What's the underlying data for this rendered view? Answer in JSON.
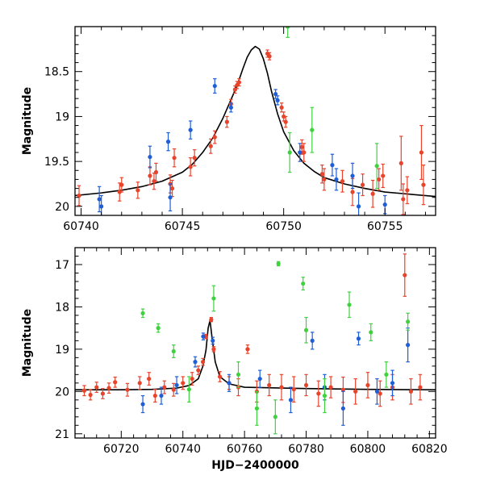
{
  "chart_data": [
    {
      "type": "scatter",
      "panel": "top",
      "title": "",
      "xlabel": "",
      "ylabel": "Magnitude",
      "xlim": [
        60739.7,
        60757.5
      ],
      "ylim": [
        20.1,
        18.0
      ],
      "y_inverted": true,
      "x_ticks": [
        60740,
        60745,
        60750,
        60755
      ],
      "x_tick_labels": [
        "60740",
        "60745",
        "60750",
        "60755"
      ],
      "y_ticks": [
        18.5,
        19,
        19.5,
        20
      ],
      "y_tick_labels": [
        "18.5",
        "19",
        "19.5",
        "20"
      ],
      "grid": false,
      "legend": "none",
      "model": {
        "name": "",
        "color": "#000000",
        "x": [
          60739.7,
          60741,
          60742,
          60743,
          60744,
          60745,
          60745.5,
          60746,
          60746.5,
          60747,
          60747.5,
          60747.8,
          60748,
          60748.2,
          60748.4,
          60748.6,
          60748.8,
          60749,
          60749.2,
          60749.4,
          60749.7,
          60750,
          60750.5,
          60751,
          60751.5,
          60752,
          60753,
          60754,
          60755,
          60756,
          60757.5
        ],
        "y": [
          19.88,
          19.85,
          19.82,
          19.78,
          19.72,
          19.62,
          19.53,
          19.4,
          19.24,
          19.02,
          18.76,
          18.59,
          18.46,
          18.34,
          18.26,
          18.22,
          18.25,
          18.36,
          18.52,
          18.72,
          18.97,
          19.17,
          19.38,
          19.52,
          19.61,
          19.68,
          19.75,
          19.8,
          19.84,
          19.86,
          19.89
        ]
      },
      "series": [
        {
          "name": "",
          "color": "#e8432b",
          "points": [
            {
              "x": 60739.9,
              "y": 19.88,
              "err": 0.11
            },
            {
              "x": 60741.9,
              "y": 19.84,
              "err": 0.1
            },
            {
              "x": 60742.0,
              "y": 19.76,
              "err": 0.08
            },
            {
              "x": 60742.8,
              "y": 19.82,
              "err": 0.09
            },
            {
              "x": 60743.4,
              "y": 19.66,
              "err": 0.1
            },
            {
              "x": 60743.6,
              "y": 19.72,
              "err": 0.09
            },
            {
              "x": 60743.7,
              "y": 19.62,
              "err": 0.1
            },
            {
              "x": 60744.4,
              "y": 19.75,
              "err": 0.1
            },
            {
              "x": 60744.5,
              "y": 19.8,
              "err": 0.09
            },
            {
              "x": 60744.6,
              "y": 19.46,
              "err": 0.1
            },
            {
              "x": 60745.4,
              "y": 19.56,
              "err": 0.1
            },
            {
              "x": 60745.6,
              "y": 19.46,
              "err": 0.09
            },
            {
              "x": 60746.4,
              "y": 19.33,
              "err": 0.08
            },
            {
              "x": 60746.6,
              "y": 19.23,
              "err": 0.07
            },
            {
              "x": 60747.2,
              "y": 19.06,
              "err": 0.06
            },
            {
              "x": 60747.4,
              "y": 18.86,
              "err": 0.05
            },
            {
              "x": 60747.6,
              "y": 18.7,
              "err": 0.04
            },
            {
              "x": 60747.7,
              "y": 18.65,
              "err": 0.04
            },
            {
              "x": 60747.8,
              "y": 18.62,
              "err": 0.04
            },
            {
              "x": 60749.2,
              "y": 18.3,
              "err": 0.04
            },
            {
              "x": 60749.3,
              "y": 18.33,
              "err": 0.04
            },
            {
              "x": 60749.9,
              "y": 18.9,
              "err": 0.05
            },
            {
              "x": 60750.0,
              "y": 19.0,
              "err": 0.05
            },
            {
              "x": 60750.1,
              "y": 19.06,
              "err": 0.06
            },
            {
              "x": 60750.9,
              "y": 19.34,
              "err": 0.08
            },
            {
              "x": 60751.0,
              "y": 19.4,
              "err": 0.1
            },
            {
              "x": 60751.9,
              "y": 19.64,
              "err": 0.1
            },
            {
              "x": 60752.0,
              "y": 19.7,
              "err": 0.12
            },
            {
              "x": 60752.9,
              "y": 19.72,
              "err": 0.12
            },
            {
              "x": 60753.4,
              "y": 19.84,
              "err": 0.15
            },
            {
              "x": 60753.9,
              "y": 19.76,
              "err": 0.12
            },
            {
              "x": 60754.4,
              "y": 19.86,
              "err": 0.15
            },
            {
              "x": 60754.7,
              "y": 19.7,
              "err": 0.12
            },
            {
              "x": 60754.9,
              "y": 19.66,
              "err": 0.13
            },
            {
              "x": 60755.8,
              "y": 19.52,
              "err": 0.3
            },
            {
              "x": 60755.9,
              "y": 19.92,
              "err": 0.17
            },
            {
              "x": 60756.1,
              "y": 19.82,
              "err": 0.15
            },
            {
              "x": 60756.8,
              "y": 19.4,
              "err": 0.3
            },
            {
              "x": 60756.9,
              "y": 19.76,
              "err": 0.22
            }
          ]
        },
        {
          "name": "",
          "color": "#1f5ed6",
          "points": [
            {
              "x": 60740.9,
              "y": 19.92,
              "err": 0.14
            },
            {
              "x": 60741.0,
              "y": 20.0,
              "err": 0.12
            },
            {
              "x": 60743.4,
              "y": 19.45,
              "err": 0.12
            },
            {
              "x": 60744.3,
              "y": 19.28,
              "err": 0.1
            },
            {
              "x": 60744.4,
              "y": 19.9,
              "err": 0.15
            },
            {
              "x": 60745.4,
              "y": 19.15,
              "err": 0.1
            },
            {
              "x": 60746.6,
              "y": 18.66,
              "err": 0.08
            },
            {
              "x": 60747.4,
              "y": 18.9,
              "err": 0.05
            },
            {
              "x": 60749.6,
              "y": 18.75,
              "err": 0.05
            },
            {
              "x": 60749.7,
              "y": 18.82,
              "err": 0.05
            },
            {
              "x": 60750.8,
              "y": 19.4,
              "err": 0.1
            },
            {
              "x": 60752.4,
              "y": 19.54,
              "err": 0.12
            },
            {
              "x": 60752.6,
              "y": 19.7,
              "err": 0.12
            },
            {
              "x": 60753.4,
              "y": 19.66,
              "err": 0.14
            },
            {
              "x": 60753.7,
              "y": 20.0,
              "err": 0.15
            },
            {
              "x": 60755.0,
              "y": 19.98,
              "err": 0.1
            }
          ]
        },
        {
          "name": "",
          "color": "#3fd23f",
          "points": [
            {
              "x": 60750.2,
              "y": 18.0,
              "err": 0.12
            },
            {
              "x": 60750.3,
              "y": 19.4,
              "err": 0.22
            },
            {
              "x": 60751.4,
              "y": 19.15,
              "err": 0.25
            },
            {
              "x": 60754.6,
              "y": 19.55,
              "err": 0.25
            }
          ]
        }
      ]
    },
    {
      "type": "scatter",
      "panel": "bottom",
      "title": "",
      "xlabel": "HJD−2400000",
      "ylabel": "Magnitude",
      "xlim": [
        60705,
        60822
      ],
      "ylim": [
        21.1,
        16.6
      ],
      "y_inverted": true,
      "x_ticks": [
        60720,
        60740,
        60760,
        60780,
        60800,
        60820
      ],
      "x_tick_labels": [
        "60720",
        "60740",
        "60760",
        "60780",
        "60800",
        "60820"
      ],
      "y_ticks": [
        17,
        18,
        19,
        20,
        21
      ],
      "y_tick_labels": [
        "17",
        "18",
        "19",
        "20",
        "21"
      ],
      "grid": false,
      "legend": "none",
      "model": {
        "name": "",
        "color": "#000000",
        "x": [
          60705,
          60720,
          60730,
          60738,
          60742,
          60745,
          60746.5,
          60747.5,
          60748.2,
          60748.8,
          60749.5,
          60750.5,
          60752,
          60755,
          60760,
          60780,
          60800,
          60822
        ],
        "y": [
          19.96,
          19.96,
          19.95,
          19.92,
          19.86,
          19.7,
          19.4,
          19.02,
          18.5,
          18.32,
          18.75,
          19.3,
          19.65,
          19.82,
          19.9,
          19.93,
          19.95,
          19.96
        ]
      },
      "series": [
        {
          "name": "",
          "color": "#e8432b",
          "points": [
            {
              "x": 60708,
              "y": 19.98,
              "err": 0.12
            },
            {
              "x": 60710,
              "y": 20.08,
              "err": 0.12
            },
            {
              "x": 60712,
              "y": 19.9,
              "err": 0.12
            },
            {
              "x": 60714,
              "y": 20.05,
              "err": 0.12
            },
            {
              "x": 60716,
              "y": 19.92,
              "err": 0.12
            },
            {
              "x": 60718,
              "y": 19.78,
              "err": 0.12
            },
            {
              "x": 60722,
              "y": 19.96,
              "err": 0.15
            },
            {
              "x": 60726,
              "y": 19.8,
              "err": 0.15
            },
            {
              "x": 60729,
              "y": 19.7,
              "err": 0.15
            },
            {
              "x": 60731,
              "y": 20.1,
              "err": 0.15
            },
            {
              "x": 60734,
              "y": 19.9,
              "err": 0.15
            },
            {
              "x": 60737,
              "y": 19.96,
              "err": 0.15
            },
            {
              "x": 60740,
              "y": 19.8,
              "err": 0.15
            },
            {
              "x": 60743,
              "y": 19.7,
              "err": 0.15
            },
            {
              "x": 60745,
              "y": 19.5,
              "err": 0.1
            },
            {
              "x": 60746.5,
              "y": 19.3,
              "err": 0.08
            },
            {
              "x": 60747.5,
              "y": 18.7,
              "err": 0.05
            },
            {
              "x": 60749.2,
              "y": 18.3,
              "err": 0.05
            },
            {
              "x": 60750,
              "y": 19.0,
              "err": 0.06
            },
            {
              "x": 60752,
              "y": 19.65,
              "err": 0.12
            },
            {
              "x": 60755,
              "y": 19.8,
              "err": 0.15
            },
            {
              "x": 60758,
              "y": 19.9,
              "err": 0.2
            },
            {
              "x": 60761,
              "y": 19.0,
              "err": 0.1
            },
            {
              "x": 60764,
              "y": 20.0,
              "err": 0.25
            },
            {
              "x": 60768,
              "y": 19.85,
              "err": 0.25
            },
            {
              "x": 60772,
              "y": 19.9,
              "err": 0.3
            },
            {
              "x": 60776,
              "y": 19.95,
              "err": 0.3
            },
            {
              "x": 60780,
              "y": 19.85,
              "err": 0.25
            },
            {
              "x": 60784,
              "y": 20.05,
              "err": 0.3
            },
            {
              "x": 60788,
              "y": 19.9,
              "err": 0.25
            },
            {
              "x": 60792,
              "y": 19.96,
              "err": 0.3
            },
            {
              "x": 60796,
              "y": 20.0,
              "err": 0.3
            },
            {
              "x": 60800,
              "y": 19.85,
              "err": 0.3
            },
            {
              "x": 60804,
              "y": 20.05,
              "err": 0.3
            },
            {
              "x": 60808,
              "y": 19.9,
              "err": 0.3
            },
            {
              "x": 60812,
              "y": 17.25,
              "err": 0.5
            },
            {
              "x": 60814,
              "y": 20.0,
              "err": 0.3
            },
            {
              "x": 60817,
              "y": 19.9,
              "err": 0.3
            }
          ]
        },
        {
          "name": "",
          "color": "#1f5ed6",
          "points": [
            {
              "x": 60727,
              "y": 20.3,
              "err": 0.2
            },
            {
              "x": 60733,
              "y": 20.1,
              "err": 0.2
            },
            {
              "x": 60738,
              "y": 19.85,
              "err": 0.2
            },
            {
              "x": 60744,
              "y": 19.3,
              "err": 0.12
            },
            {
              "x": 60746.6,
              "y": 18.7,
              "err": 0.08
            },
            {
              "x": 60749.7,
              "y": 18.8,
              "err": 0.08
            },
            {
              "x": 60755,
              "y": 19.8,
              "err": 0.2
            },
            {
              "x": 60765,
              "y": 19.7,
              "err": 0.2
            },
            {
              "x": 60775,
              "y": 20.2,
              "err": 0.3
            },
            {
              "x": 60782,
              "y": 18.8,
              "err": 0.2
            },
            {
              "x": 60786,
              "y": 19.9,
              "err": 0.3
            },
            {
              "x": 60792,
              "y": 20.4,
              "err": 0.4
            },
            {
              "x": 60797,
              "y": 18.75,
              "err": 0.15
            },
            {
              "x": 60803,
              "y": 20.0,
              "err": 0.3
            },
            {
              "x": 60808,
              "y": 19.8,
              "err": 0.3
            },
            {
              "x": 60813,
              "y": 18.9,
              "err": 0.4
            }
          ]
        },
        {
          "name": "",
          "color": "#3fd23f",
          "points": [
            {
              "x": 60727,
              "y": 18.15,
              "err": 0.1
            },
            {
              "x": 60732,
              "y": 18.5,
              "err": 0.1
            },
            {
              "x": 60737,
              "y": 19.05,
              "err": 0.15
            },
            {
              "x": 60742,
              "y": 19.95,
              "err": 0.3
            },
            {
              "x": 60750,
              "y": 17.8,
              "err": 0.3
            },
            {
              "x": 60758,
              "y": 19.6,
              "err": 0.3
            },
            {
              "x": 60764,
              "y": 20.4,
              "err": 0.4
            },
            {
              "x": 60770,
              "y": 20.6,
              "err": 0.4
            },
            {
              "x": 60771,
              "y": 16.98,
              "err": 0.05
            },
            {
              "x": 60779,
              "y": 17.45,
              "err": 0.15
            },
            {
              "x": 60780,
              "y": 18.55,
              "err": 0.3
            },
            {
              "x": 60786,
              "y": 20.1,
              "err": 0.4
            },
            {
              "x": 60794,
              "y": 17.95,
              "err": 0.3
            },
            {
              "x": 60801,
              "y": 18.6,
              "err": 0.2
            },
            {
              "x": 60806,
              "y": 19.6,
              "err": 0.3
            },
            {
              "x": 60813,
              "y": 18.35,
              "err": 0.2
            }
          ]
        }
      ]
    }
  ]
}
